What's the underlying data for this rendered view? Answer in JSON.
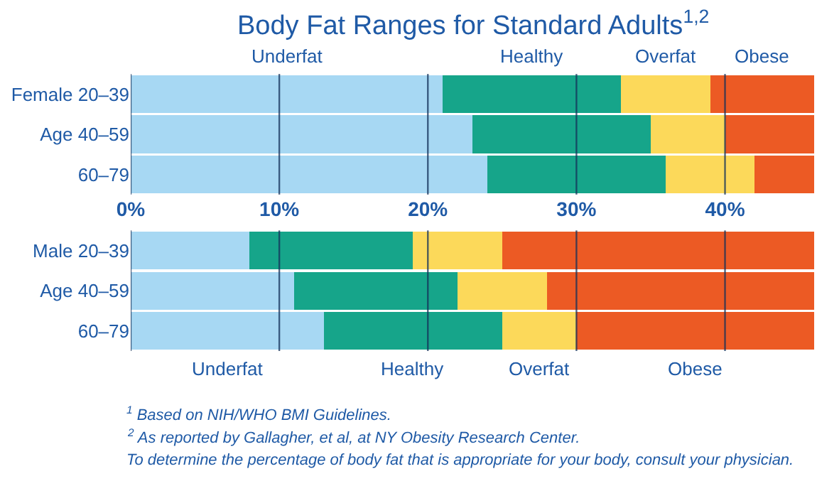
{
  "chart_data": [
    {
      "type": "bar",
      "orientation": "horizontal",
      "stacked": true,
      "title": "Body Fat Ranges for Standard Adults$^{1,2}$",
      "categories": [
        "Female 20–39",
        "Age 40–59",
        "60–79"
      ],
      "series": [
        {
          "name": "Underfat",
          "color": "#a7d8f3",
          "values": [
            21,
            23,
            24
          ]
        },
        {
          "name": "Healthy",
          "color": "#16a58a",
          "values": [
            12,
            12,
            12
          ]
        },
        {
          "name": "Overfat",
          "color": "#fcd95a",
          "values": [
            6,
            5,
            6
          ]
        },
        {
          "name": "Obese",
          "color": "#ec5a24",
          "values": [
            7,
            6,
            4
          ]
        }
      ],
      "xlim": [
        0,
        46
      ],
      "xticks": [
        {
          "value": 0,
          "label": "0%"
        },
        {
          "value": 10,
          "label": "10%"
        },
        {
          "value": 20,
          "label": "20%"
        },
        {
          "value": 30,
          "label": "30%"
        },
        {
          "value": 40,
          "label": "40%"
        }
      ],
      "grid": "x",
      "legend": "top"
    },
    {
      "type": "bar",
      "orientation": "horizontal",
      "stacked": true,
      "categories": [
        "Male 20–39",
        "Age 40–59",
        "60–79"
      ],
      "series": [
        {
          "name": "Underfat",
          "color": "#a7d8f3",
          "values": [
            8,
            11,
            13
          ]
        },
        {
          "name": "Healthy",
          "color": "#16a58a",
          "values": [
            11,
            11,
            12
          ]
        },
        {
          "name": "Overfat",
          "color": "#fcd95a",
          "values": [
            6,
            6,
            5
          ]
        },
        {
          "name": "Obese",
          "color": "#ec5a24",
          "values": [
            21,
            18,
            16
          ]
        }
      ],
      "xlim": [
        0,
        46
      ],
      "xticks": [
        {
          "value": 0,
          "label": null
        },
        {
          "value": 10,
          "label": null
        },
        {
          "value": 20,
          "label": null
        },
        {
          "value": 30,
          "label": null
        },
        {
          "value": 40,
          "label": null
        }
      ],
      "grid": "x",
      "legend": "bottom",
      "tick_labels": "y",
      "annotations": [
        "$^{1}$ Based on NIH/WHO BMI Guidelines.",
        "$^{2}$ As reported by Gallagher, et al, at NY Obesity Research Center.",
        "To determine the percentage of body fat that is appropriate for your body, consult your physician."
      ]
    }
  ]
}
